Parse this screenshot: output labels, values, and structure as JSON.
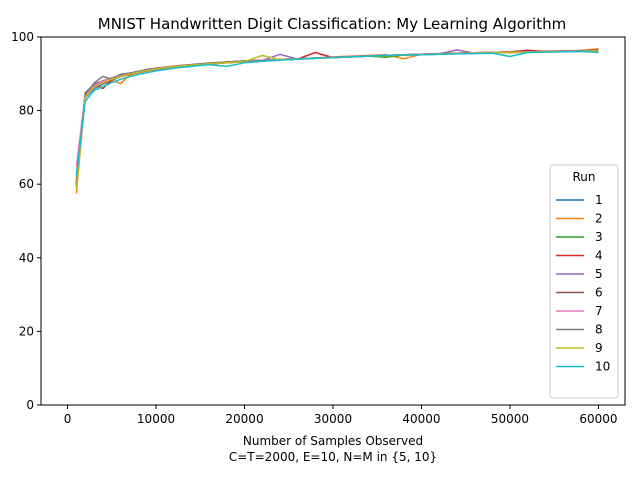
{
  "chart_data": {
    "type": "line",
    "title": "MNIST Handwritten Digit Classification: My Learning Algorithm",
    "xlabel": "Number of Samples Observed",
    "xlabel_sub": "C=T=2000, E=10, N=M in {5, 10}",
    "ylabel": "",
    "xlim": [
      -3000,
      63000
    ],
    "ylim": [
      0,
      100
    ],
    "xticks": [
      0,
      10000,
      20000,
      30000,
      40000,
      50000,
      60000
    ],
    "yticks": [
      0,
      20,
      40,
      60,
      80,
      100
    ],
    "grid": false,
    "legend": {
      "title": "Run",
      "placement": "lower-right"
    },
    "x": [
      1000,
      2000,
      3000,
      4000,
      5000,
      6000,
      7000,
      8000,
      9000,
      10000,
      12000,
      14000,
      16000,
      18000,
      20000,
      22000,
      24000,
      26000,
      28000,
      30000,
      32000,
      34000,
      36000,
      38000,
      40000,
      42000,
      44000,
      46000,
      48000,
      50000,
      52000,
      54000,
      56000,
      58000,
      60000
    ],
    "series": [
      {
        "name": "1",
        "color": "#1f77b4",
        "values": [
          60.5,
          83.5,
          86.0,
          87.2,
          88.1,
          89.5,
          90.0,
          90.6,
          91.2,
          91.5,
          92.0,
          92.4,
          92.8,
          93.0,
          93.3,
          93.6,
          93.8,
          94.0,
          94.2,
          94.4,
          94.6,
          94.8,
          95.0,
          95.1,
          95.2,
          95.3,
          95.5,
          95.6,
          95.7,
          95.8,
          95.9,
          96.0,
          96.0,
          96.1,
          96.1
        ]
      },
      {
        "name": "2",
        "color": "#ff7f0e",
        "values": [
          57.5,
          84.0,
          86.5,
          87.5,
          88.3,
          87.3,
          89.6,
          90.4,
          91.0,
          91.3,
          91.8,
          92.2,
          92.6,
          93.0,
          93.4,
          93.7,
          93.9,
          94.1,
          94.3,
          94.6,
          94.8,
          95.0,
          95.2,
          94.1,
          95.3,
          95.4,
          95.6,
          95.7,
          95.8,
          96.0,
          96.1,
          96.2,
          96.2,
          96.3,
          96.8
        ]
      },
      {
        "name": "3",
        "color": "#2ca02c",
        "values": [
          60.0,
          84.2,
          86.8,
          88.0,
          88.7,
          89.4,
          90.1,
          90.6,
          91.0,
          91.4,
          92.0,
          92.5,
          92.9,
          93.2,
          93.5,
          93.7,
          93.9,
          94.1,
          94.3,
          94.5,
          94.6,
          94.8,
          94.5,
          95.1,
          95.3,
          95.4,
          95.5,
          95.7,
          95.8,
          95.9,
          96.0,
          96.1,
          96.2,
          96.2,
          96.3
        ]
      },
      {
        "name": "4",
        "color": "#d62728",
        "values": [
          61.0,
          84.5,
          87.0,
          86.0,
          88.4,
          89.2,
          89.8,
          90.3,
          90.8,
          91.2,
          91.8,
          92.3,
          92.7,
          93.0,
          93.3,
          93.6,
          93.8,
          94.0,
          95.8,
          94.4,
          94.6,
          94.8,
          95.0,
          95.2,
          95.3,
          95.5,
          95.6,
          95.7,
          95.8,
          96.0,
          96.4,
          96.1,
          96.2,
          96.3,
          96.4
        ]
      },
      {
        "name": "5",
        "color": "#9467bd",
        "values": [
          62.5,
          83.8,
          86.6,
          87.8,
          88.6,
          89.3,
          90.0,
          90.5,
          91.0,
          91.4,
          91.9,
          92.4,
          92.8,
          93.1,
          93.4,
          93.6,
          95.3,
          94.0,
          94.2,
          94.4,
          94.6,
          94.8,
          95.0,
          95.1,
          95.3,
          95.4,
          96.5,
          95.6,
          95.7,
          95.8,
          95.9,
          96.0,
          96.1,
          96.2,
          96.2
        ]
      },
      {
        "name": "6",
        "color": "#8c564b",
        "values": [
          59.5,
          84.8,
          87.2,
          88.1,
          88.9,
          89.6,
          90.2,
          90.7,
          91.1,
          91.5,
          92.1,
          92.5,
          92.9,
          93.2,
          93.5,
          93.7,
          93.9,
          94.1,
          94.3,
          94.5,
          94.7,
          94.9,
          95.0,
          95.2,
          95.3,
          95.4,
          95.6,
          95.7,
          95.8,
          95.9,
          96.0,
          96.1,
          96.2,
          96.3,
          96.4
        ]
      },
      {
        "name": "7",
        "color": "#e377c2",
        "values": [
          65.0,
          84.0,
          86.9,
          88.0,
          88.8,
          89.5,
          90.1,
          90.6,
          91.0,
          91.4,
          92.0,
          92.4,
          92.8,
          93.1,
          93.4,
          93.7,
          93.9,
          94.1,
          94.3,
          94.5,
          94.7,
          94.9,
          95.0,
          95.1,
          95.3,
          95.4,
          95.5,
          95.7,
          95.8,
          95.9,
          96.0,
          96.1,
          96.2,
          96.2,
          96.3
        ]
      },
      {
        "name": "8",
        "color": "#7f7f7f",
        "values": [
          60.8,
          84.3,
          87.5,
          89.3,
          88.5,
          89.9,
          90.2,
          90.6,
          91.0,
          91.3,
          91.9,
          92.4,
          92.8,
          93.1,
          93.4,
          93.6,
          93.8,
          94.0,
          94.2,
          94.4,
          94.6,
          94.8,
          95.0,
          95.1,
          95.2,
          95.4,
          95.5,
          95.6,
          95.7,
          95.8,
          95.9,
          96.0,
          96.1,
          96.2,
          96.2
        ]
      },
      {
        "name": "9",
        "color": "#bcbd22",
        "values": [
          59.0,
          83.6,
          86.3,
          87.6,
          88.5,
          89.2,
          89.9,
          90.4,
          90.9,
          91.3,
          91.9,
          92.3,
          92.7,
          93.0,
          93.3,
          95.0,
          93.8,
          94.0,
          94.2,
          94.4,
          94.6,
          94.8,
          94.9,
          95.1,
          95.2,
          95.4,
          95.5,
          95.6,
          95.7,
          95.8,
          95.9,
          96.0,
          96.1,
          96.1,
          96.2
        ]
      },
      {
        "name": "10",
        "color": "#17becf",
        "values": [
          62.0,
          82.5,
          85.5,
          86.5,
          87.6,
          88.5,
          89.2,
          89.8,
          90.3,
          90.8,
          91.5,
          92.0,
          92.5,
          92.0,
          93.0,
          93.4,
          93.7,
          94.0,
          94.2,
          94.4,
          94.6,
          94.8,
          95.0,
          95.1,
          95.2,
          95.3,
          95.4,
          95.5,
          95.6,
          94.7,
          95.8,
          95.9,
          96.0,
          96.1,
          95.8
        ]
      }
    ]
  }
}
